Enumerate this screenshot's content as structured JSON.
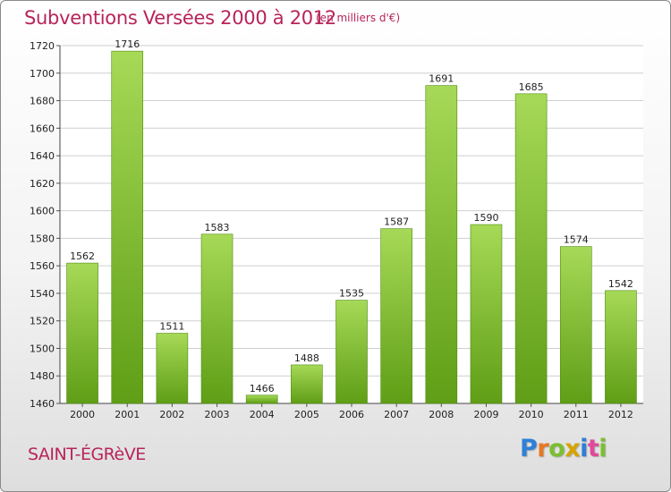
{
  "title": "Subventions Versées 2000 à 2012",
  "unit": "(en milliers d'€)",
  "commune": "SAINT-ÉGRèVE",
  "logo": {
    "letters": [
      "P",
      "r",
      "o",
      "x",
      "i",
      "t",
      "i"
    ],
    "colors": [
      "#2f7fd6",
      "#e87722",
      "#7bbf2f",
      "#d6a400",
      "#2f7fd6",
      "#e04a9a",
      "#7bbf2f"
    ]
  },
  "colors": {
    "title": "#b8245a",
    "bar_top": "#a6d957",
    "bar_bottom": "#5f9e16",
    "grid": "#cfcfcf"
  },
  "chart_data": {
    "type": "bar",
    "title": "Subventions Versées 2000 à 2012",
    "subtitle": "(en milliers d'€)",
    "categories": [
      "2000",
      "2001",
      "2002",
      "2003",
      "2004",
      "2005",
      "2006",
      "2007",
      "2008",
      "2009",
      "2010",
      "2011",
      "2012"
    ],
    "values": [
      1562,
      1716,
      1511,
      1583,
      1466,
      1488,
      1535,
      1587,
      1691,
      1590,
      1685,
      1574,
      1542
    ],
    "ylim": [
      1460,
      1720
    ],
    "yticks": [
      1460,
      1480,
      1500,
      1520,
      1540,
      1560,
      1580,
      1600,
      1620,
      1640,
      1660,
      1680,
      1700,
      1720
    ],
    "grid": true,
    "legend": "none",
    "xlabel": "",
    "ylabel": ""
  }
}
